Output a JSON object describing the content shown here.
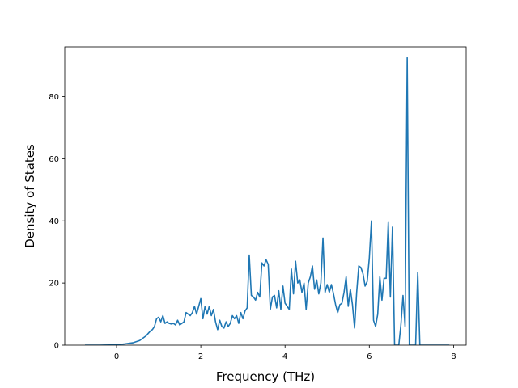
{
  "chart_data": {
    "type": "line",
    "title": "",
    "xlabel": "Frequency (THz)",
    "ylabel": "Density of States",
    "xlim": [
      -1.23,
      8.3
    ],
    "ylim": [
      0,
      96
    ],
    "xticks": [
      0,
      2,
      4,
      6,
      8
    ],
    "yticks": [
      0,
      20,
      40,
      60,
      80
    ],
    "grid": false,
    "colors": {
      "line": "#1f77b4",
      "axes": "#000000",
      "background": "#ffffff"
    },
    "series": [
      {
        "x": [
          -0.75,
          -0.4,
          0.0,
          0.2,
          0.4,
          0.55,
          0.7,
          0.8,
          0.85,
          0.9,
          0.95,
          1.0,
          1.05,
          1.1,
          1.15,
          1.2,
          1.25,
          1.3,
          1.35,
          1.4,
          1.45,
          1.5,
          1.55,
          1.6,
          1.65,
          1.7,
          1.75,
          1.8,
          1.85,
          1.9,
          1.95,
          2.0,
          2.05,
          2.1,
          2.15,
          2.2,
          2.25,
          2.3,
          2.35,
          2.4,
          2.45,
          2.5,
          2.55,
          2.6,
          2.65,
          2.7,
          2.75,
          2.8,
          2.85,
          2.9,
          2.95,
          3.0,
          3.05,
          3.1,
          3.15,
          3.2,
          3.25,
          3.3,
          3.35,
          3.4,
          3.45,
          3.5,
          3.55,
          3.6,
          3.65,
          3.7,
          3.75,
          3.8,
          3.85,
          3.9,
          3.95,
          4.0,
          4.05,
          4.1,
          4.15,
          4.2,
          4.25,
          4.3,
          4.35,
          4.4,
          4.45,
          4.5,
          4.55,
          4.6,
          4.65,
          4.7,
          4.75,
          4.8,
          4.85,
          4.9,
          4.95,
          5.0,
          5.05,
          5.1,
          5.15,
          5.2,
          5.25,
          5.3,
          5.35,
          5.4,
          5.45,
          5.5,
          5.55,
          5.6,
          5.65,
          5.7,
          5.75,
          5.8,
          5.85,
          5.9,
          5.95,
          6.0,
          6.05,
          6.1,
          6.15,
          6.2,
          6.25,
          6.3,
          6.35,
          6.4,
          6.45,
          6.5,
          6.55,
          6.6,
          6.65,
          6.7,
          6.75,
          6.8,
          6.85,
          6.9,
          6.95,
          7.0,
          7.05,
          7.1,
          7.15,
          7.2,
          7.3,
          7.5,
          7.9
        ],
        "y": [
          0,
          0,
          0.1,
          0.4,
          0.8,
          1.5,
          3.0,
          4.5,
          5.0,
          6.0,
          8.5,
          9.0,
          7.5,
          9.5,
          7.0,
          7.5,
          7.0,
          6.8,
          7.0,
          6.5,
          8.0,
          6.5,
          7.0,
          7.5,
          10.5,
          10.0,
          9.5,
          10.5,
          12.5,
          10.0,
          12.5,
          15.0,
          8.5,
          12.5,
          10.0,
          12.5,
          9.5,
          11.5,
          7.5,
          5.0,
          8.0,
          6.0,
          5.5,
          7.5,
          6.0,
          7.0,
          9.5,
          8.5,
          9.5,
          7.0,
          10.5,
          8.5,
          11.0,
          12.0,
          29.0,
          16.0,
          15.5,
          14.5,
          17.0,
          15.5,
          26.5,
          25.5,
          27.5,
          26.0,
          11.5,
          15.5,
          16.0,
          12.0,
          17.5,
          11.5,
          19.0,
          13.5,
          12.5,
          11.5,
          24.5,
          16.5,
          27.0,
          20.0,
          21.0,
          17.0,
          20.0,
          11.5,
          20.0,
          22.0,
          25.5,
          18.0,
          21.0,
          16.5,
          20.0,
          34.5,
          17.0,
          19.5,
          17.0,
          19.5,
          16.5,
          13.0,
          10.5,
          13.0,
          13.5,
          17.0,
          22.0,
          12.5,
          18.0,
          13.0,
          5.5,
          17.0,
          25.5,
          25.0,
          23.0,
          19.0,
          20.5,
          28.0,
          40.0,
          8.0,
          6.0,
          10.0,
          22.0,
          14.5,
          21.5,
          21.5,
          39.5,
          15.5,
          38.0,
          0,
          0,
          0,
          6.5,
          16.0,
          6.0,
          92.5,
          0,
          0,
          0,
          0,
          23.5,
          0,
          0,
          0,
          0
        ]
      }
    ]
  }
}
